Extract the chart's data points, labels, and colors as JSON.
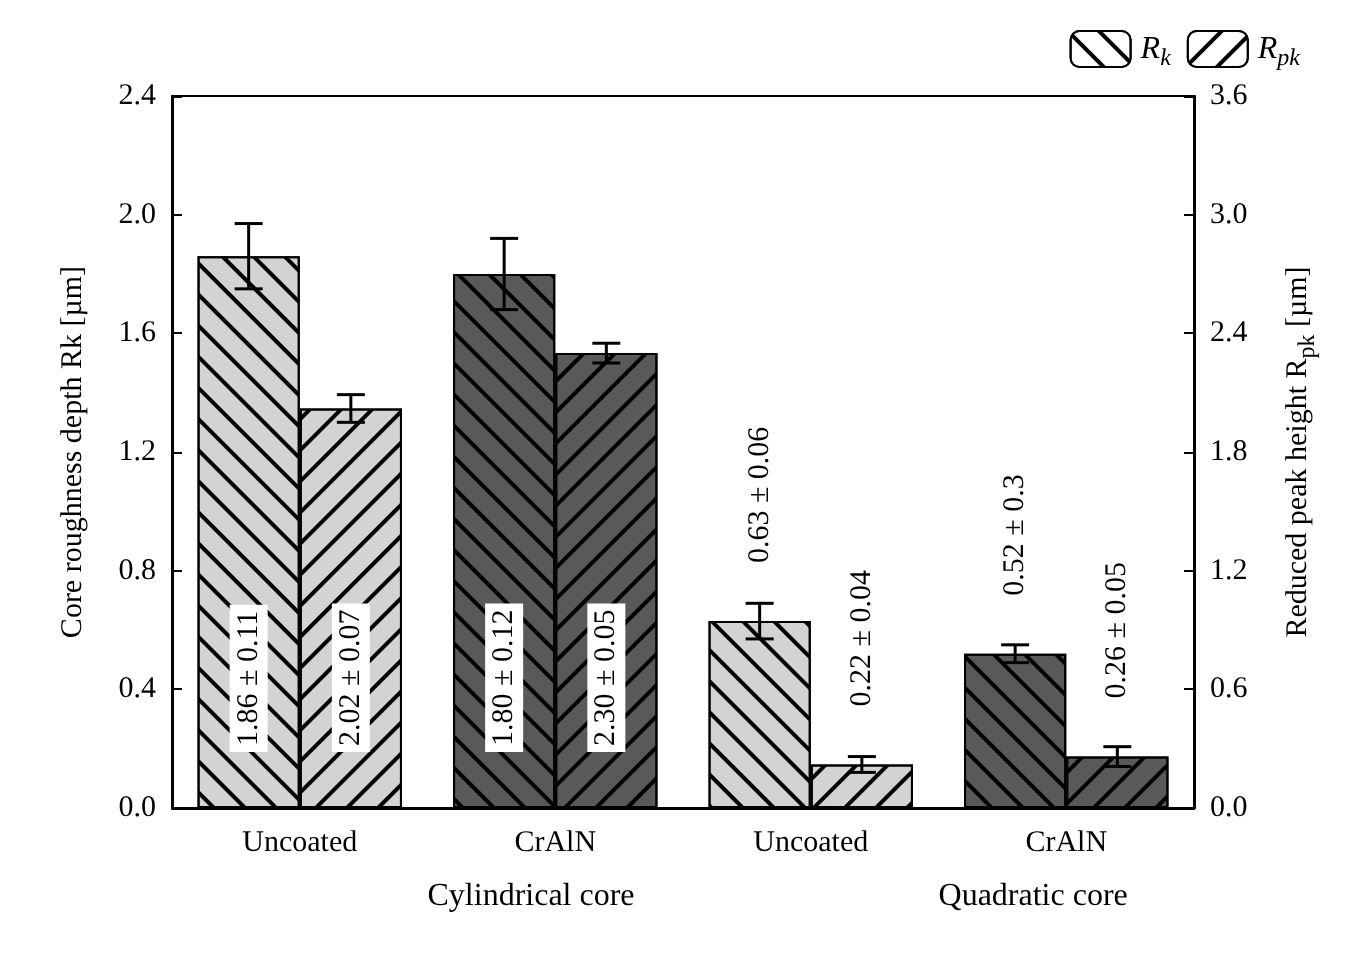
{
  "chart_data": {
    "type": "bar",
    "categories": [
      "Uncoated",
      "CrAlN",
      "Uncoated",
      "CrAlN"
    ],
    "ylabel": "Core roughness depth Rk [µm]",
    "y2label": "Reduced peak height R$_{pk}$ [µm]",
    "annotations": [
      "Cylindrical core",
      "Quadratic core"
    ],
    "series": [
      {
        "name": "R$_{k}$",
        "color": "#ffffff",
        "colors": [
          "#d3d3d3",
          "#595959",
          "#d3d3d3",
          "#595959"
        ],
        "values": [
          1.86,
          1.8,
          0.63,
          0.52
        ],
        "errors": [
          0.11,
          0.12,
          0.06,
          0.03
        ],
        "value_labels": [
          "1.86 ± 0.11",
          "1.80 ± 0.12",
          "0.63 ± 0.06",
          "0.52 ± 0.3"
        ]
      },
      {
        "name": "R$_{pk}$",
        "color": "#ffffff",
        "colors": [
          "#d3d3d3",
          "#595959",
          "#d3d3d3",
          "#595959"
        ],
        "values": [
          2.02,
          2.3,
          0.22,
          0.26
        ],
        "errors": [
          0.07,
          0.05,
          0.04,
          0.05
        ],
        "axis": "y2",
        "value_labels": [
          "2.02 ± 0.07",
          "2.30 ± 0.05",
          "0.22 ± 0.04",
          "0.26 ± 0.05"
        ]
      }
    ],
    "ylim": [
      0,
      2.4
    ],
    "yticks": [
      {
        "value": 0,
        "label": "0.0"
      },
      {
        "value": 0.4,
        "label": "0.4"
      },
      {
        "value": 0.8,
        "label": "0.8"
      },
      {
        "value": 1.2,
        "label": "1.2"
      },
      {
        "value": 1.6,
        "label": "1.6"
      },
      {
        "value": 2.0,
        "label": "2.0"
      },
      {
        "value": 2.4,
        "label": "2.4"
      }
    ],
    "y2lim": [
      0,
      3.6
    ],
    "y2ticks": [
      {
        "value": 0,
        "label": "0.0"
      },
      {
        "value": 0.6,
        "label": "0.6"
      },
      {
        "value": 1.2,
        "label": "1.2"
      },
      {
        "value": 1.8,
        "label": "1.8"
      },
      {
        "value": 2.4,
        "label": "2.4"
      },
      {
        "value": 3.0,
        "label": "3.0"
      },
      {
        "value": 3.6,
        "label": "3.6"
      }
    ],
    "grid": false,
    "legend": "top right"
  }
}
